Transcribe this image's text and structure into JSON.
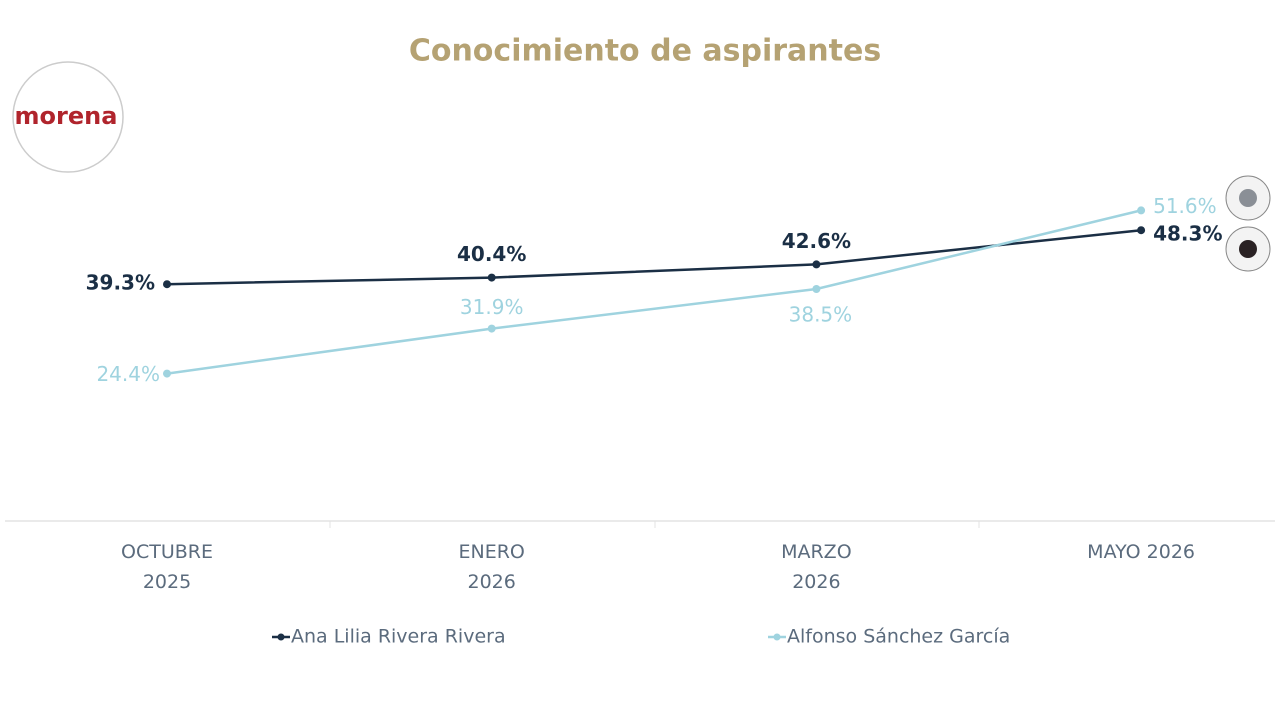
{
  "chart_data": {
    "type": "line",
    "title": "Conocimiento de aspirantes",
    "logo": "morena",
    "categories": [
      "OCTUBRE 2025",
      "ENERO 2026",
      "MARZO 2026",
      "MAYO 2026"
    ],
    "series": [
      {
        "name": "Ana Lilia Rivera Rivera",
        "color": "#1b2f45",
        "values": [
          39.3,
          40.4,
          42.6,
          48.3
        ],
        "value_labels": [
          "39.3%",
          "40.4%",
          "42.6%",
          "48.3%"
        ]
      },
      {
        "name": "Alfonso Sánchez García",
        "color": "#9fd3df",
        "values": [
          24.4,
          31.9,
          38.5,
          51.6
        ],
        "value_labels": [
          "24.4%",
          "31.9%",
          "38.5%",
          "51.6%"
        ]
      }
    ]
  }
}
